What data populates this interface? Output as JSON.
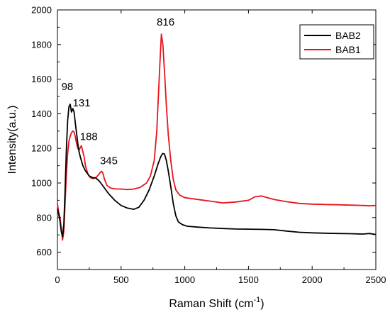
{
  "chart_data": {
    "type": "line",
    "title": "",
    "xlabel": "Raman Shift (cm",
    "xlabel_sup": "-1",
    "xlabel_end": ")",
    "ylabel": "Intensity(a.u.)",
    "xlim": [
      0,
      2500
    ],
    "ylim": [
      500,
      2000
    ],
    "x_ticks": [
      0,
      500,
      1000,
      1500,
      2000,
      2500
    ],
    "y_ticks": [
      600,
      800,
      1000,
      1200,
      1400,
      1600,
      1800,
      2000
    ],
    "x_tick_labels": [
      "0",
      "500",
      "1000",
      "1500",
      "2000",
      "2500"
    ],
    "y_tick_labels": [
      "600",
      "800",
      "1000",
      "1200",
      "1400",
      "1600",
      "1800",
      "2000"
    ],
    "grid": false,
    "legend_position": "top-right",
    "series": [
      {
        "name": "BAB2",
        "color": "#000000",
        "x": [
          0,
          10,
          20,
          30,
          40,
          50,
          60,
          70,
          80,
          90,
          100,
          110,
          120,
          131,
          140,
          150,
          160,
          170,
          180,
          200,
          220,
          250,
          280,
          300,
          330,
          360,
          400,
          450,
          500,
          550,
          600,
          640,
          680,
          720,
          760,
          790,
          810,
          825,
          840,
          855,
          870,
          890,
          910,
          930,
          950,
          980,
          1020,
          1100,
          1200,
          1300,
          1400,
          1500,
          1600,
          1700,
          1800,
          1900,
          2000,
          2100,
          2200,
          2300,
          2400,
          2450,
          2500
        ],
        "y": [
          850,
          820,
          780,
          720,
          690,
          760,
          960,
          1190,
          1360,
          1440,
          1455,
          1410,
          1430,
          1410,
          1350,
          1290,
          1230,
          1180,
          1150,
          1100,
          1070,
          1040,
          1030,
          1030,
          1010,
          980,
          940,
          900,
          870,
          855,
          848,
          860,
          900,
          960,
          1040,
          1110,
          1150,
          1170,
          1168,
          1130,
          1070,
          980,
          880,
          810,
          775,
          760,
          750,
          745,
          740,
          737,
          734,
          733,
          732,
          730,
          722,
          715,
          712,
          710,
          708,
          707,
          705,
          708,
          702
        ]
      },
      {
        "name": "BAB1",
        "color": "#e8141b",
        "x": [
          0,
          10,
          20,
          30,
          40,
          50,
          60,
          70,
          80,
          90,
          100,
          110,
          120,
          130,
          140,
          150,
          160,
          170,
          180,
          188,
          200,
          210,
          220,
          240,
          260,
          280,
          300,
          320,
          335,
          345,
          355,
          370,
          390,
          420,
          460,
          500,
          550,
          600,
          650,
          700,
          730,
          760,
          780,
          795,
          805,
          816,
          828,
          840,
          855,
          870,
          890,
          910,
          930,
          960,
          1000,
          1100,
          1200,
          1300,
          1400,
          1500,
          1550,
          1600,
          1650,
          1700,
          1800,
          1900,
          2000,
          2100,
          2200,
          2300,
          2400,
          2450,
          2500
        ],
        "y": [
          880,
          830,
          800,
          740,
          670,
          720,
          880,
          1050,
          1170,
          1240,
          1270,
          1290,
          1300,
          1295,
          1270,
          1230,
          1200,
          1190,
          1205,
          1215,
          1180,
          1150,
          1100,
          1050,
          1030,
          1025,
          1030,
          1045,
          1060,
          1068,
          1060,
          1020,
          985,
          970,
          965,
          965,
          962,
          965,
          975,
          1000,
          1040,
          1130,
          1300,
          1540,
          1700,
          1860,
          1800,
          1650,
          1450,
          1280,
          1130,
          1020,
          960,
          930,
          915,
          905,
          895,
          885,
          890,
          900,
          920,
          925,
          915,
          905,
          892,
          882,
          878,
          876,
          874,
          872,
          870,
          868,
          870
        ]
      }
    ],
    "annotations": [
      {
        "text": "98",
        "x": 98,
        "y": 1455
      },
      {
        "text": "131",
        "x": 131,
        "y": 1410
      },
      {
        "text": "188",
        "x": 188,
        "y": 1215
      },
      {
        "text": "345",
        "x": 345,
        "y": 1068
      },
      {
        "text": "816",
        "x": 816,
        "y": 1860
      }
    ]
  }
}
